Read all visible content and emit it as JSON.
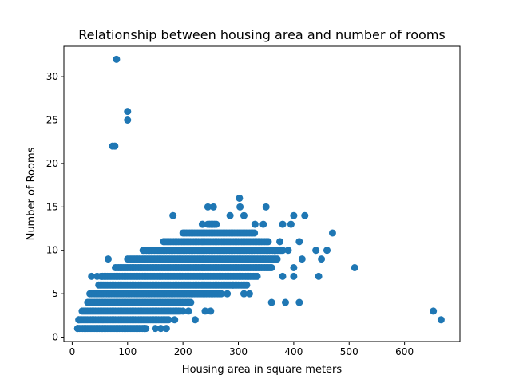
{
  "chart_data": {
    "type": "scatter",
    "title": "Relationship between housing area and number of rooms",
    "xlabel": "Housing area in square meters",
    "ylabel": "Number of Rooms",
    "xlim": [
      -15,
      700
    ],
    "ylim": [
      -0.5,
      33.5
    ],
    "xticks": [
      0,
      100,
      200,
      300,
      400,
      500,
      600
    ],
    "yticks": [
      0,
      5,
      10,
      15,
      20,
      25,
      30
    ],
    "grid": false,
    "marker_color": "#1f77b4",
    "points": [
      {
        "x": 80,
        "y": 32
      },
      {
        "x": 100,
        "y": 26
      },
      {
        "x": 100,
        "y": 25
      },
      {
        "x": 73,
        "y": 22
      },
      {
        "x": 77,
        "y": 22
      },
      {
        "x": 652,
        "y": 3
      },
      {
        "x": 666,
        "y": 2
      },
      {
        "x": 510,
        "y": 8
      },
      {
        "x": 470,
        "y": 12
      },
      {
        "x": 460,
        "y": 10
      },
      {
        "x": 450,
        "y": 9
      },
      {
        "x": 445,
        "y": 7
      },
      {
        "x": 440,
        "y": 10
      },
      {
        "x": 420,
        "y": 14
      },
      {
        "x": 400,
        "y": 14
      },
      {
        "x": 410,
        "y": 11
      },
      {
        "x": 415,
        "y": 9
      },
      {
        "x": 380,
        "y": 13
      },
      {
        "x": 395,
        "y": 13
      },
      {
        "x": 375,
        "y": 11
      },
      {
        "x": 390,
        "y": 10
      },
      {
        "x": 365,
        "y": 10
      },
      {
        "x": 400,
        "y": 8
      },
      {
        "x": 400,
        "y": 7
      },
      {
        "x": 380,
        "y": 7
      },
      {
        "x": 360,
        "y": 4
      },
      {
        "x": 385,
        "y": 4
      },
      {
        "x": 410,
        "y": 4
      },
      {
        "x": 350,
        "y": 15
      },
      {
        "x": 302,
        "y": 16
      },
      {
        "x": 303,
        "y": 15
      },
      {
        "x": 245,
        "y": 15
      },
      {
        "x": 255,
        "y": 15
      },
      {
        "x": 285,
        "y": 14
      },
      {
        "x": 310,
        "y": 14
      },
      {
        "x": 182,
        "y": 14
      },
      {
        "x": 235,
        "y": 13
      },
      {
        "x": 345,
        "y": 13
      },
      {
        "x": 330,
        "y": 13
      },
      {
        "x": 65,
        "y": 9
      },
      {
        "x": 35,
        "y": 7
      },
      {
        "x": 45,
        "y": 7
      },
      {
        "x": 290,
        "y": 6
      },
      {
        "x": 310,
        "y": 5
      },
      {
        "x": 320,
        "y": 5
      },
      {
        "x": 280,
        "y": 5
      },
      {
        "x": 200,
        "y": 3
      },
      {
        "x": 210,
        "y": 3
      },
      {
        "x": 240,
        "y": 3
      },
      {
        "x": 250,
        "y": 3
      },
      {
        "x": 222,
        "y": 2
      },
      {
        "x": 185,
        "y": 2
      },
      {
        "x": 150,
        "y": 1
      },
      {
        "x": 160,
        "y": 1
      },
      {
        "x": 170,
        "y": 1
      },
      {
        "x": 130,
        "y": 1
      },
      {
        "x": 10,
        "y": 1
      },
      {
        "x": 12,
        "y": 2
      }
    ],
    "density_bands": [
      {
        "y": 1,
        "x0": 10,
        "x1": 135
      },
      {
        "y": 2,
        "x0": 12,
        "x1": 175
      },
      {
        "y": 3,
        "x0": 18,
        "x1": 195
      },
      {
        "y": 4,
        "x0": 28,
        "x1": 215
      },
      {
        "y": 5,
        "x0": 32,
        "x1": 270
      },
      {
        "y": 6,
        "x0": 48,
        "x1": 315
      },
      {
        "y": 7,
        "x0": 52,
        "x1": 335
      },
      {
        "y": 8,
        "x0": 78,
        "x1": 360
      },
      {
        "y": 9,
        "x0": 100,
        "x1": 370
      },
      {
        "y": 10,
        "x0": 128,
        "x1": 380
      },
      {
        "y": 11,
        "x0": 165,
        "x1": 355
      },
      {
        "y": 12,
        "x0": 200,
        "x1": 330
      },
      {
        "y": 13,
        "x0": 245,
        "x1": 260
      }
    ]
  }
}
